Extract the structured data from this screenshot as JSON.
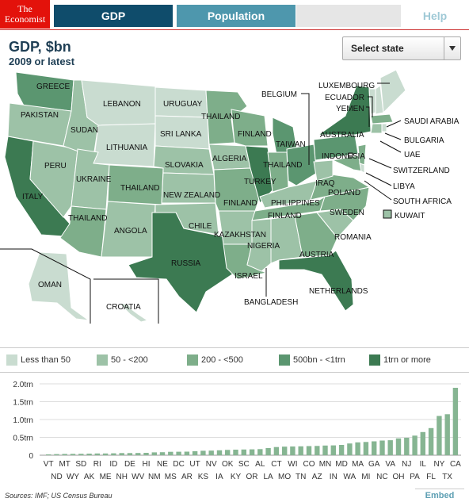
{
  "header": {
    "logo_line1": "The",
    "logo_line2": "Economist",
    "tabs": [
      {
        "label": "GDP"
      },
      {
        "label": "Population"
      },
      {
        "label": ""
      },
      {
        "label": "Help"
      }
    ]
  },
  "title": "GDP, $bn",
  "subtitle": "2009 or latest",
  "state_select": {
    "value": "Select state"
  },
  "map_labels": [
    "GREECE",
    "PAKISTAN",
    "SUDAN",
    "LEBANON",
    "URUGUAY",
    "SRI LANKA",
    "LITHUANIA",
    "PERU",
    "UKRAINE",
    "ITALY",
    "THAILAND",
    "ANGOLA",
    "SLOVAKIA",
    "THAILAND",
    "NEW ZEALAND",
    "CHILE",
    "RUSSIA",
    "KAZAKHSTAN",
    "ALGERIA",
    "THAILAND",
    "FINLAND",
    "TAIWAN",
    "BELGIUM",
    "TURKEY",
    "THAILAND",
    "FINLAND",
    "FINLAND",
    "PHILIPPINES",
    "NIGERIA",
    "ISRAEL",
    "BANGLADESH",
    "NETHERLANDS",
    "AUSTRIA",
    "ROMANIA",
    "SWEDEN",
    "POLAND",
    "IRAQ",
    "INDONESIA",
    "AUSTRALIA",
    "LUXEMBOURG",
    "ECUADOR",
    "YEMEN",
    "SAUDI ARABIA",
    "BULGARIA",
    "UAE",
    "SWITZERLAND",
    "LIBYA",
    "SOUTH AFRICA",
    "KUWAIT",
    "OMAN",
    "CROATIA"
  ],
  "colors": {
    "c1": "#c9dcd0",
    "c2": "#9dc2a7",
    "c3": "#7eae8a",
    "c4": "#5b9670",
    "c5": "#3c7a52",
    "brand": "#e3120b",
    "bar": "#86b592"
  },
  "legend": [
    {
      "label": "Less than 50",
      "color": "#c9dcd0"
    },
    {
      "label": "50 - <200",
      "color": "#9dc2a7"
    },
    {
      "label": "200 - <500",
      "color": "#7eae8a"
    },
    {
      "label": "500bn - <1trn",
      "color": "#5b9670"
    },
    {
      "label": "1trn or more",
      "color": "#3c7a52"
    }
  ],
  "chart_data": {
    "type": "bar",
    "categories": [
      "VT",
      "ND",
      "MT",
      "WY",
      "SD",
      "AK",
      "RI",
      "ME",
      "ID",
      "NH",
      "DE",
      "WV",
      "HI",
      "NM",
      "NE",
      "MS",
      "DC",
      "AR",
      "UT",
      "KS",
      "NV",
      "IA",
      "OK",
      "KY",
      "SC",
      "OR",
      "AL",
      "LA",
      "CT",
      "MO",
      "WI",
      "TN",
      "CO",
      "AZ",
      "MN",
      "IN",
      "MD",
      "WA",
      "MA",
      "MI",
      "GA",
      "NC",
      "VA",
      "OH",
      "NJ",
      "PA",
      "IL",
      "FL",
      "NY",
      "TX",
      "CA"
    ],
    "values": [
      0.025,
      0.031,
      0.035,
      0.038,
      0.04,
      0.045,
      0.048,
      0.05,
      0.054,
      0.06,
      0.06,
      0.062,
      0.066,
      0.08,
      0.085,
      0.095,
      0.097,
      0.1,
      0.11,
      0.125,
      0.128,
      0.137,
      0.15,
      0.155,
      0.16,
      0.165,
      0.17,
      0.2,
      0.23,
      0.24,
      0.245,
      0.25,
      0.255,
      0.26,
      0.27,
      0.275,
      0.29,
      0.33,
      0.36,
      0.37,
      0.39,
      0.41,
      0.42,
      0.47,
      0.49,
      0.55,
      0.65,
      0.76,
      1.1,
      1.15,
      1.89
    ],
    "yticks": [
      "0",
      "0.5trn",
      "1.0trn",
      "1.5trn",
      "2.0trn"
    ],
    "ylim": [
      0,
      2.0
    ]
  },
  "footer": {
    "source": "Sources: IMF; US Census Bureau",
    "embed": "Embed"
  }
}
